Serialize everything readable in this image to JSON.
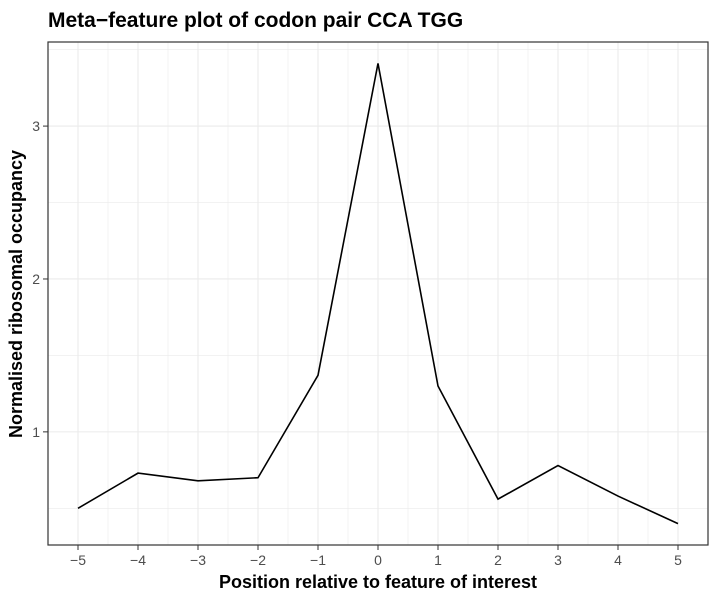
{
  "chart_data": {
    "type": "line",
    "title": "Meta−feature plot of codon pair CCA TGG",
    "xlabel": "Position relative to feature of interest",
    "ylabel": "Normalised ribosomal occupancy",
    "x": [
      -5,
      -4,
      -3,
      -2,
      -1,
      0,
      1,
      2,
      3,
      4,
      5
    ],
    "series": [
      {
        "values": [
          0.5,
          0.73,
          0.68,
          0.7,
          1.37,
          3.41,
          1.3,
          0.56,
          0.78,
          0.58,
          0.4
        ]
      }
    ],
    "xticks": [
      -5,
      -4,
      -3,
      -2,
      -1,
      0,
      1,
      2,
      3,
      4,
      5
    ],
    "xtick_labels": [
      "−5",
      "−4",
      "−3",
      "−2",
      "−1",
      "0",
      "1",
      "2",
      "3",
      "4",
      "5"
    ],
    "yticks": [
      1,
      2,
      3
    ],
    "ytick_labels": [
      "1",
      "2",
      "3"
    ],
    "xlim": [
      -5.5,
      5.5
    ],
    "ylim": [
      0.26,
      3.55
    ],
    "grid": true,
    "colors": {
      "line": "#000000",
      "grid": "#ebebeb",
      "panel_border": "#333333",
      "tick_text": "#4d4d4d"
    }
  }
}
